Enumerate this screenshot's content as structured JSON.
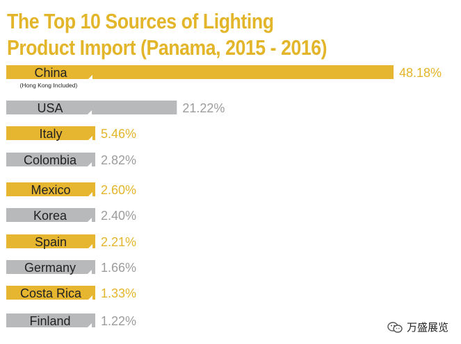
{
  "title_line1": "The Top 10 Sources of Lighting",
  "title_line2": "Product Import (Panama, 2015 - 2016)",
  "colors": {
    "gold": "#e6b631",
    "gray": "#b8b9bb",
    "gold_text": "#e3b52a",
    "gray_text": "#9c9c9c",
    "label_text": "#222222"
  },
  "chart_data": {
    "type": "bar",
    "orientation": "horizontal",
    "title": "The Top 10 Sources of Lighting Product Import (Panama, 2015 - 2016)",
    "categories": [
      "China",
      "USA",
      "Italy",
      "Colombia",
      "Mexico",
      "Korea",
      "Spain",
      "Germany",
      "Costa Rica",
      "Finland"
    ],
    "values": [
      48.18,
      21.22,
      5.46,
      2.82,
      2.6,
      2.4,
      2.21,
      1.66,
      1.33,
      1.22
    ],
    "value_labels": [
      "48.18%",
      "21.22%",
      "5.46%",
      "2.82%",
      "2.60%",
      "2.40%",
      "2.21%",
      "1.66%",
      "1.33%",
      "1.22%"
    ],
    "colors": [
      "gold",
      "gray",
      "gold",
      "gray",
      "gold",
      "gray",
      "gold",
      "gray",
      "gold",
      "gray"
    ],
    "notes": [
      "(Hong Kong Included)",
      "",
      "",
      "",
      "",
      "",
      "",
      "",
      "",
      ""
    ],
    "xlim": [
      0,
      48.18
    ],
    "unit": "%",
    "grid": false,
    "legend": "none"
  },
  "watermark": {
    "text": "万盛展览",
    "icon": "wechat-icon"
  }
}
